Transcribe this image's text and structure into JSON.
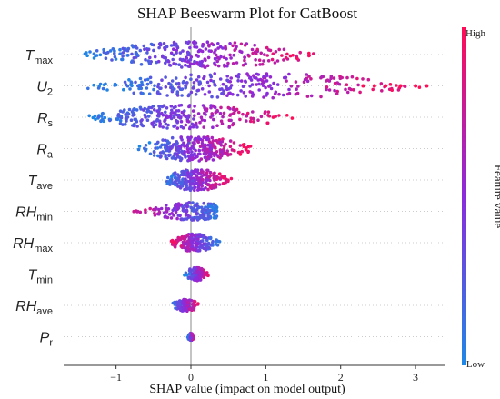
{
  "chart_data": {
    "type": "scatter",
    "subtype": "beeswarm",
    "title": "SHAP Beeswarm Plot for CatBoost",
    "xlabel": "SHAP value (impact on model output)",
    "xlim": [
      -1.7,
      3.4
    ],
    "xticks": [
      -1,
      0,
      1,
      2,
      3
    ],
    "features": [
      {
        "base": "T",
        "sub": "max",
        "min": -1.5,
        "max": 1.8,
        "shape": "wide",
        "density": 0.95
      },
      {
        "base": "U",
        "sub": "2",
        "min": -1.5,
        "max": 3.15,
        "shape": "wide",
        "density": 0.95
      },
      {
        "base": "R",
        "sub": "s",
        "min": -1.4,
        "max": 1.4,
        "shape": "wide",
        "density": 0.9
      },
      {
        "base": "R",
        "sub": "a",
        "min": -0.75,
        "max": 0.85,
        "shape": "block",
        "density": 0.9
      },
      {
        "base": "T",
        "sub": "ave",
        "min": -0.4,
        "max": 0.55,
        "shape": "split",
        "density": 0.75
      },
      {
        "base": "RH",
        "sub": "min",
        "min": -1.0,
        "max": 0.35,
        "shape": "left",
        "density": 0.6
      },
      {
        "base": "RH",
        "sub": "max",
        "min": -0.3,
        "max": 0.4,
        "shape": "compact",
        "density": 0.6
      },
      {
        "base": "T",
        "sub": "min",
        "min": -0.1,
        "max": 0.25,
        "shape": "narrow",
        "density": 0.4
      },
      {
        "base": "RH",
        "sub": "ave",
        "min": -0.3,
        "max": 0.15,
        "shape": "narrow",
        "density": 0.35
      },
      {
        "base": "P",
        "sub": "r",
        "min": -0.05,
        "max": 0.05,
        "shape": "narrow",
        "density": 0.15
      }
    ],
    "colorbar": {
      "label": "Feature value",
      "high": "High",
      "low": "Low",
      "low_color": "#1e88e5",
      "high_color": "#ff0d57"
    }
  }
}
